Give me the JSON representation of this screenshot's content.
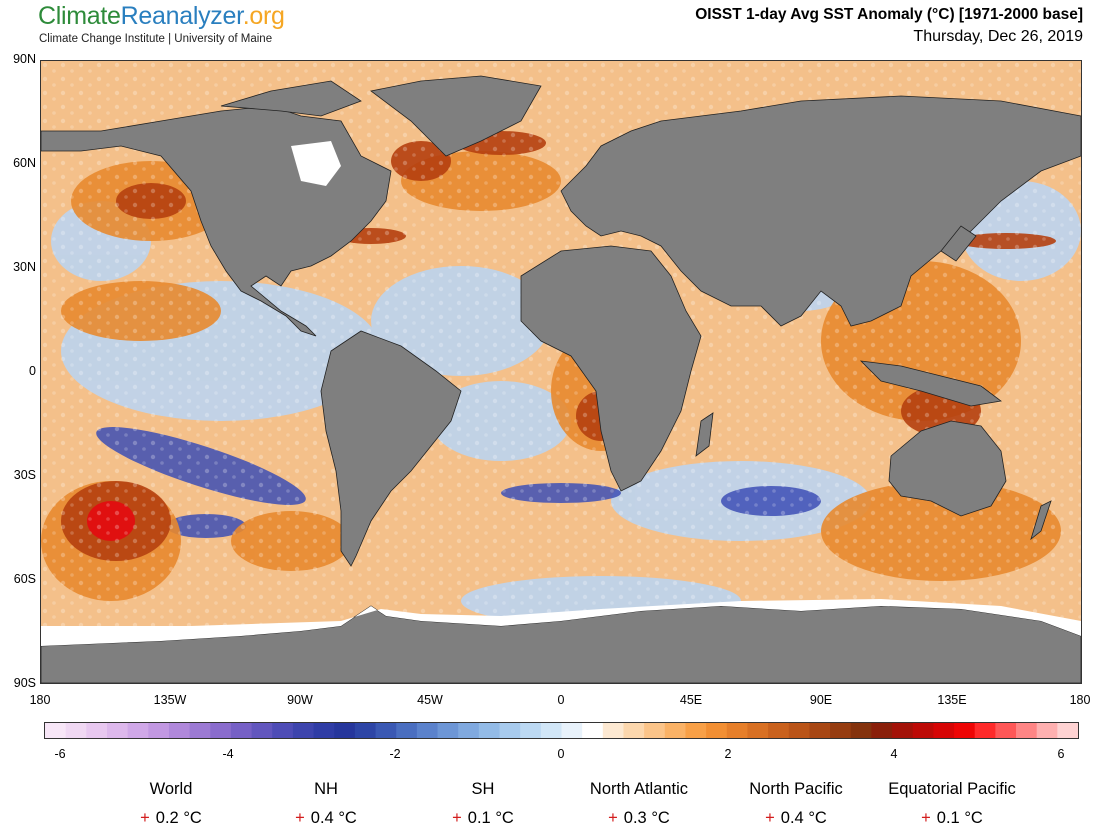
{
  "header": {
    "logo_part1": "Climate",
    "logo_part2": "Reanalyzer",
    "logo_part3": ".org",
    "subtitle": "Climate Change Institute | University of Maine",
    "title": "OISST 1-day Avg SST Anomaly (°C) [1971-2000 base]",
    "date": "Thursday, Dec 26, 2019"
  },
  "map": {
    "y_labels": [
      "90N",
      "60N",
      "30N",
      "0",
      "30S",
      "60S",
      "90S"
    ],
    "x_labels": [
      "180",
      "135W",
      "90W",
      "45W",
      "0",
      "45E",
      "90E",
      "135E",
      "180"
    ],
    "colors": {
      "land": "#7f7f7f",
      "ice": "#ffffff",
      "warm": "#e8892f",
      "hot": "#b5400f",
      "extreme": "#e01010",
      "cool": "#bcd4ef",
      "cold": "#3d4fb5"
    }
  },
  "colorbar": {
    "labels": [
      "-6",
      "-4",
      "-2",
      "0",
      "2",
      "4",
      "6"
    ],
    "colors": [
      "#f7e6f7",
      "#f0d8f3",
      "#e8c8f0",
      "#ddb8ec",
      "#d0a8e8",
      "#c298e2",
      "#b088db",
      "#9c7ad4",
      "#8a6ccd",
      "#7660c6",
      "#6256be",
      "#4e4cb6",
      "#3d44ad",
      "#2f3ca5",
      "#26369c",
      "#2d45a6",
      "#3a58b3",
      "#4a6ec0",
      "#5b82cc",
      "#6d96d6",
      "#80a9df",
      "#93bbe7",
      "#a8cbee",
      "#bcd9f3",
      "#d1e6f7",
      "#e8f2fb",
      "#ffffff",
      "#fde9d2",
      "#fcd7ad",
      "#fbc489",
      "#fab266",
      "#f8a047",
      "#f28f33",
      "#e67f2a",
      "#d87023",
      "#c9611d",
      "#ba5418",
      "#a84714",
      "#963c10",
      "#84320d",
      "#8a1f0a",
      "#a31208",
      "#bd0a06",
      "#d60505",
      "#ee0505",
      "#ff2a2a",
      "#ff5757",
      "#ff8585",
      "#ffb0b0",
      "#ffd3d3"
    ]
  },
  "regions": [
    {
      "name": "World",
      "value": "0.2 °C"
    },
    {
      "name": "NH",
      "value": "0.4 °C"
    },
    {
      "name": "SH",
      "value": "0.1 °C"
    },
    {
      "name": "North Atlantic",
      "value": "0.3 °C"
    },
    {
      "name": "North Pacific",
      "value": "0.4 °C"
    },
    {
      "name": "Equatorial Pacific",
      "value": "0.1 °C"
    }
  ],
  "plus_sign": "+"
}
